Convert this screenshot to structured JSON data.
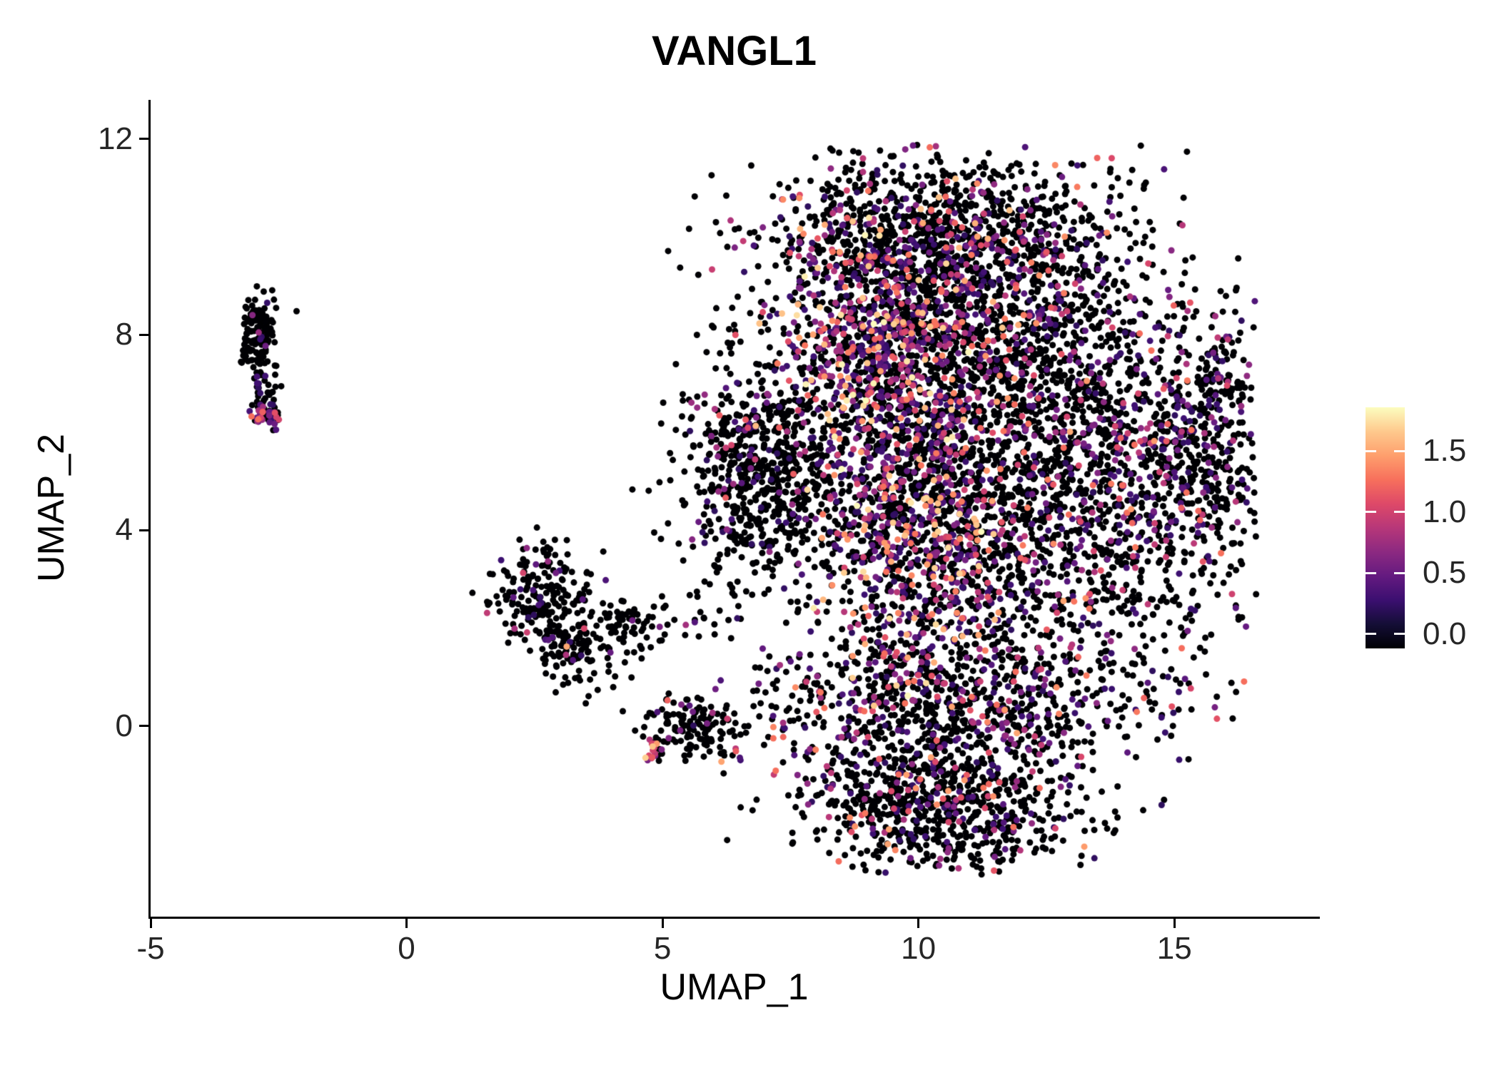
{
  "figure": {
    "background": "#ffffff"
  },
  "chart_data": {
    "type": "scatter",
    "title": "VANGL1",
    "xlabel": "UMAP_1",
    "ylabel": "UMAP_2",
    "x_range": [
      -5,
      17.8
    ],
    "y_range": [
      -3.9,
      12.8
    ],
    "x_ticks": [
      -5,
      0,
      5,
      10,
      15
    ],
    "x_tick_labels": [
      "-5",
      "0",
      "5",
      "10",
      "15"
    ],
    "y_ticks": [
      0,
      4,
      8,
      12
    ],
    "y_tick_labels": [
      "0",
      "4",
      "8",
      "12"
    ],
    "grid": false,
    "legend_position": "right",
    "color_scale": {
      "name": "magma",
      "domain": [
        0,
        1.8
      ],
      "stops": [
        "#000004",
        "#140e36",
        "#3b0f70",
        "#641a80",
        "#8c2981",
        "#b73779",
        "#de4968",
        "#f7705c",
        "#fe9f6d",
        "#fec98d",
        "#fcfdbf"
      ]
    },
    "legend": {
      "min": -0.12,
      "max": 1.86,
      "tick_values": [
        0.0,
        0.5,
        1.0,
        1.5
      ],
      "tick_labels": [
        "0.0",
        "0.5",
        "1.0",
        "1.5"
      ]
    },
    "seed": 42,
    "point_radius": 4.5,
    "data_extent": {
      "x": [
        -4.9,
        16.6
      ],
      "y": [
        -3.05,
        11.9
      ]
    },
    "clusters": [
      {
        "name": "left-islet-top",
        "cx": -2.92,
        "cy": 8.0,
        "sx": 0.18,
        "sy": 0.45,
        "n": 120,
        "p_zero": 0.93,
        "v_min": 0.3,
        "v_max": 1.0,
        "v_pow": 2.0
      },
      {
        "name": "left-islet-tail",
        "cx": -2.8,
        "cy": 7.0,
        "sx": 0.12,
        "sy": 0.45,
        "n": 40,
        "p_zero": 0.9,
        "v_min": 0.3,
        "v_max": 0.8,
        "v_pow": 2.0
      },
      {
        "name": "left-islet-spot",
        "cx": -2.72,
        "cy": 6.35,
        "sx": 0.13,
        "sy": 0.14,
        "n": 45,
        "p_zero": 0.35,
        "v_min": 0.3,
        "v_max": 1.3,
        "v_pow": 1.5
      },
      {
        "name": "mid-cluster-upper",
        "cx": 2.6,
        "cy": 2.7,
        "sx": 0.45,
        "sy": 0.5,
        "n": 180,
        "p_zero": 0.9,
        "v_min": 0.3,
        "v_max": 1.2,
        "v_pow": 2.0
      },
      {
        "name": "mid-cluster-lower",
        "cx": 3.3,
        "cy": 1.6,
        "sx": 0.45,
        "sy": 0.45,
        "n": 140,
        "p_zero": 0.88,
        "v_min": 0.3,
        "v_max": 1.5,
        "v_pow": 2.0
      },
      {
        "name": "mid-arm",
        "cx": 4.8,
        "cy": 2.15,
        "sx": 0.75,
        "sy": 0.28,
        "n": 70,
        "p_zero": 0.93,
        "v_min": 0.3,
        "v_max": 1.0,
        "v_pow": 2.0
      },
      {
        "name": "trail",
        "cx": 5.6,
        "cy": 0.0,
        "sx": 0.5,
        "sy": 0.3,
        "n": 120,
        "p_zero": 0.9,
        "v_min": 0.3,
        "v_max": 1.2,
        "v_pow": 2.0
      },
      {
        "name": "trail-spot",
        "cx": 4.85,
        "cy": -0.5,
        "sx": 0.1,
        "sy": 0.13,
        "n": 22,
        "p_zero": 0.3,
        "v_min": 0.6,
        "v_max": 1.7,
        "v_pow": 1.2
      },
      {
        "name": "main-top-dome",
        "cx": 10.4,
        "cy": 10.1,
        "sx": 1.7,
        "sy": 0.8,
        "n": 1000,
        "p_zero": 0.78,
        "v_min": 0.3,
        "v_max": 1.6,
        "v_pow": 2.2
      },
      {
        "name": "main-upper-band",
        "cx": 9.2,
        "cy": 7.8,
        "sx": 1.1,
        "sy": 1.3,
        "n": 900,
        "p_zero": 0.5,
        "v_min": 0.3,
        "v_max": 1.8,
        "v_pow": 1.8
      },
      {
        "name": "main-upper-right",
        "cx": 12.0,
        "cy": 8.0,
        "sx": 1.6,
        "sy": 1.1,
        "n": 800,
        "p_zero": 0.78,
        "v_min": 0.3,
        "v_max": 1.4,
        "v_pow": 2.0
      },
      {
        "name": "main-left-arm",
        "cx": 7.0,
        "cy": 5.2,
        "sx": 0.8,
        "sy": 1.2,
        "n": 700,
        "p_zero": 0.88,
        "v_min": 0.3,
        "v_max": 1.2,
        "v_pow": 2.5
      },
      {
        "name": "main-center-band",
        "cx": 9.8,
        "cy": 4.0,
        "sx": 0.9,
        "sy": 1.8,
        "n": 900,
        "p_zero": 0.52,
        "v_min": 0.3,
        "v_max": 1.8,
        "v_pow": 1.8
      },
      {
        "name": "main-center",
        "cx": 11.3,
        "cy": 4.5,
        "sx": 1.6,
        "sy": 2.0,
        "n": 1300,
        "p_zero": 0.75,
        "v_min": 0.3,
        "v_max": 1.5,
        "v_pow": 2.0
      },
      {
        "name": "main-right",
        "cx": 14.2,
        "cy": 5.0,
        "sx": 1.3,
        "sy": 1.8,
        "n": 900,
        "p_zero": 0.72,
        "v_min": 0.3,
        "v_max": 1.3,
        "v_pow": 2.0
      },
      {
        "name": "main-far-right",
        "cx": 15.8,
        "cy": 6.0,
        "sx": 0.6,
        "sy": 1.3,
        "n": 250,
        "p_zero": 0.75,
        "v_min": 0.3,
        "v_max": 1.2,
        "v_pow": 2.0
      },
      {
        "name": "main-bottom-band",
        "cx": 10.6,
        "cy": 0.4,
        "sx": 2.2,
        "sy": 0.7,
        "n": 700,
        "p_zero": 0.68,
        "v_min": 0.3,
        "v_max": 1.5,
        "v_pow": 2.0
      },
      {
        "name": "main-bottom-lobe",
        "cx": 10.4,
        "cy": -1.7,
        "sx": 1.4,
        "sy": 0.75,
        "n": 800,
        "p_zero": 0.82,
        "v_min": 0.3,
        "v_max": 1.5,
        "v_pow": 2.0
      }
    ]
  }
}
